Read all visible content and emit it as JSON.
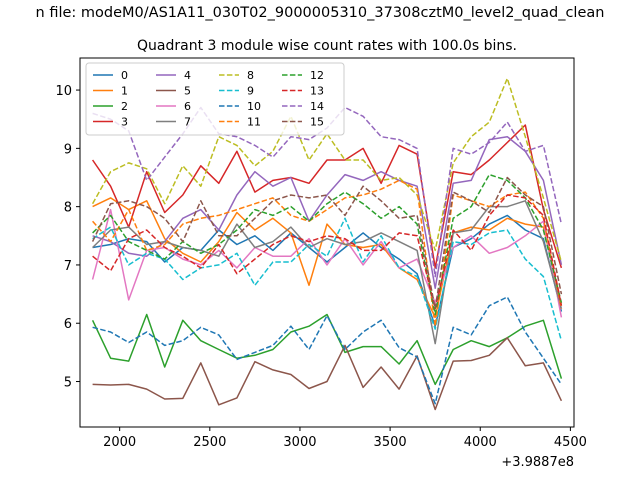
{
  "suptitle": "n file: modeM0/AS1A11_030T02_9000005310_37308cztM0_level2_quad_clean",
  "chart_data": {
    "type": "line",
    "title": "Quadrant 3 module wise count rates with 100.0s bins.",
    "xlabel": "",
    "ylabel": "",
    "x_offset_label": "+3.9887e8",
    "x": [
      1850,
      1950,
      2050,
      2150,
      2250,
      2350,
      2450,
      2550,
      2650,
      2750,
      2850,
      2950,
      3050,
      3150,
      3250,
      3350,
      3450,
      3550,
      3650,
      3750,
      3850,
      3950,
      4050,
      4150,
      4250,
      4350,
      4450
    ],
    "xlim": [
      1780,
      4520
    ],
    "ylim": [
      4.22,
      10.55
    ],
    "xticks": [
      2000,
      2500,
      3000,
      3500,
      4000,
      4500
    ],
    "yticks": [
      5,
      6,
      7,
      8,
      9,
      10
    ],
    "grid": false,
    "legend": {
      "placement": "top-left",
      "columns": 4
    },
    "series": [
      {
        "name": "0",
        "color": "#1f77b4",
        "dash": "solid",
        "values": [
          7.3,
          7.35,
          7.45,
          7.4,
          7.05,
          7.3,
          7.25,
          7.6,
          7.35,
          7.5,
          7.25,
          7.55,
          7.3,
          7.05,
          7.3,
          7.55,
          7.3,
          7.1,
          6.85,
          5.95,
          7.3,
          7.45,
          7.7,
          7.85,
          7.6,
          7.45,
          6.2
        ]
      },
      {
        "name": "1",
        "color": "#ff7f0e",
        "dash": "solid",
        "values": [
          8.0,
          8.15,
          7.95,
          8.1,
          7.45,
          7.2,
          7.05,
          7.4,
          7.9,
          7.6,
          7.8,
          7.55,
          6.65,
          7.7,
          7.35,
          7.3,
          7.35,
          6.95,
          6.75,
          6.1,
          7.55,
          7.65,
          7.6,
          7.8,
          7.7,
          7.65,
          6.3
        ]
      },
      {
        "name": "2",
        "color": "#2ca02c",
        "dash": "solid",
        "values": [
          6.05,
          5.4,
          5.35,
          6.15,
          5.25,
          6.05,
          5.7,
          5.55,
          5.4,
          5.45,
          5.55,
          5.85,
          5.95,
          6.15,
          5.5,
          5.6,
          5.6,
          5.3,
          5.7,
          4.95,
          5.55,
          5.7,
          5.6,
          5.75,
          5.95,
          6.05,
          5.05
        ]
      },
      {
        "name": "3",
        "color": "#d62728",
        "dash": "solid",
        "values": [
          8.8,
          8.35,
          7.65,
          8.6,
          7.9,
          8.2,
          8.7,
          8.4,
          8.95,
          8.25,
          8.45,
          8.5,
          8.4,
          8.8,
          8.8,
          9.0,
          8.4,
          9.05,
          8.9,
          6.95,
          8.6,
          8.55,
          8.8,
          9.1,
          9.4,
          7.95,
          6.95
        ]
      },
      {
        "name": "4",
        "color": "#9467bd",
        "dash": "solid",
        "values": [
          7.5,
          7.4,
          7.2,
          7.15,
          7.4,
          7.8,
          7.95,
          7.6,
          8.2,
          8.6,
          8.35,
          8.5,
          7.75,
          8.2,
          8.55,
          8.45,
          8.6,
          8.45,
          8.35,
          6.6,
          8.4,
          8.45,
          9.15,
          9.2,
          8.95,
          8.45,
          7.0
        ]
      },
      {
        "name": "5",
        "color": "#8c564b",
        "dash": "solid",
        "values": [
          4.95,
          4.94,
          4.95,
          4.87,
          4.7,
          4.71,
          5.32,
          4.6,
          4.72,
          5.34,
          5.2,
          5.12,
          4.88,
          5.0,
          5.62,
          4.9,
          5.25,
          4.87,
          5.44,
          4.52,
          5.35,
          5.36,
          5.45,
          5.75,
          5.27,
          5.32,
          4.67
        ]
      },
      {
        "name": "6",
        "color": "#e377c2",
        "dash": "solid",
        "values": [
          6.75,
          7.95,
          6.4,
          7.25,
          7.3,
          7.1,
          7.0,
          7.25,
          6.95,
          7.3,
          7.15,
          7.15,
          7.45,
          7.0,
          7.45,
          7.0,
          7.4,
          6.95,
          7.1,
          6.35,
          7.3,
          7.5,
          7.2,
          7.3,
          7.5,
          7.75,
          6.1
        ]
      },
      {
        "name": "7",
        "color": "#7f7f7f",
        "dash": "solid",
        "values": [
          7.3,
          7.6,
          7.65,
          7.35,
          7.4,
          7.3,
          7.25,
          7.15,
          7.7,
          7.3,
          7.4,
          7.65,
          7.3,
          7.45,
          7.35,
          7.4,
          7.55,
          7.4,
          7.25,
          5.65,
          7.55,
          7.6,
          8.0,
          8.0,
          8.1,
          7.4,
          6.25
        ]
      },
      {
        "name": "8",
        "color": "#bcbd22",
        "dash": "dashed",
        "values": [
          8.05,
          8.6,
          8.75,
          8.65,
          8.05,
          8.7,
          8.35,
          9.2,
          9.05,
          8.7,
          8.95,
          9.55,
          8.8,
          9.25,
          8.8,
          8.8,
          8.45,
          8.5,
          8.2,
          7.25,
          8.75,
          9.2,
          9.45,
          10.2,
          9.2,
          8.15,
          7.05
        ]
      },
      {
        "name": "9",
        "color": "#17becf",
        "dash": "dashed",
        "values": [
          7.45,
          7.65,
          7.0,
          7.2,
          7.1,
          6.75,
          6.95,
          7.0,
          7.2,
          6.65,
          7.05,
          7.05,
          7.35,
          7.15,
          7.8,
          7.05,
          7.5,
          6.95,
          6.8,
          5.9,
          7.4,
          7.35,
          7.55,
          7.6,
          7.1,
          6.8,
          5.7
        ]
      },
      {
        "name": "10",
        "color": "#1f77b4",
        "dash": "dashed",
        "values": [
          5.93,
          5.85,
          5.67,
          5.85,
          5.62,
          5.7,
          5.93,
          5.8,
          5.38,
          5.5,
          5.62,
          5.95,
          5.55,
          6.13,
          5.55,
          5.85,
          6.05,
          5.58,
          5.42,
          4.62,
          5.93,
          5.8,
          6.3,
          6.45,
          5.85,
          5.4,
          4.95
        ]
      },
      {
        "name": "11",
        "color": "#ff7f0e",
        "dash": "dashed",
        "values": [
          7.75,
          7.4,
          7.95,
          7.25,
          7.35,
          7.7,
          7.8,
          7.85,
          7.95,
          8.05,
          8.15,
          7.85,
          7.75,
          7.95,
          8.15,
          8.2,
          8.3,
          8.45,
          8.3,
          5.95,
          8.2,
          8.1,
          8.0,
          8.2,
          8.25,
          7.8,
          6.25
        ]
      },
      {
        "name": "12",
        "color": "#2ca02c",
        "dash": "dashed",
        "values": [
          7.55,
          7.85,
          7.4,
          7.25,
          7.1,
          7.4,
          7.2,
          7.35,
          7.6,
          7.95,
          7.85,
          8.0,
          7.75,
          8.05,
          8.25,
          8.05,
          7.8,
          8.0,
          7.7,
          6.15,
          7.8,
          8.0,
          8.55,
          8.45,
          8.15,
          7.6,
          6.35
        ]
      },
      {
        "name": "13",
        "color": "#d62728",
        "dash": "dashed",
        "values": [
          7.15,
          6.9,
          7.45,
          7.6,
          7.3,
          7.15,
          6.95,
          7.35,
          6.85,
          7.1,
          7.35,
          7.5,
          7.4,
          7.5,
          7.45,
          7.25,
          7.25,
          7.55,
          7.5,
          6.25,
          7.6,
          7.25,
          7.85,
          8.2,
          8.15,
          7.85,
          6.3
        ]
      },
      {
        "name": "14",
        "color": "#9467bd",
        "dash": "dashed",
        "values": [
          9.6,
          9.5,
          9.3,
          8.45,
          8.85,
          9.25,
          9.7,
          9.25,
          9.2,
          9.05,
          8.85,
          9.2,
          9.15,
          9.35,
          9.7,
          9.55,
          9.2,
          9.15,
          9.0,
          6.8,
          9.0,
          8.9,
          9.1,
          9.45,
          8.95,
          9.05,
          7.7
        ]
      },
      {
        "name": "15",
        "color": "#8c564b",
        "dash": "dashed",
        "values": [
          7.4,
          8.05,
          8.1,
          8.0,
          7.8,
          7.4,
          8.1,
          7.5,
          7.5,
          7.8,
          8.1,
          8.2,
          8.15,
          8.2,
          7.85,
          8.35,
          8.1,
          7.8,
          7.85,
          6.25,
          8.25,
          8.1,
          7.9,
          8.5,
          8.2,
          8.0,
          6.5
        ]
      }
    ]
  }
}
